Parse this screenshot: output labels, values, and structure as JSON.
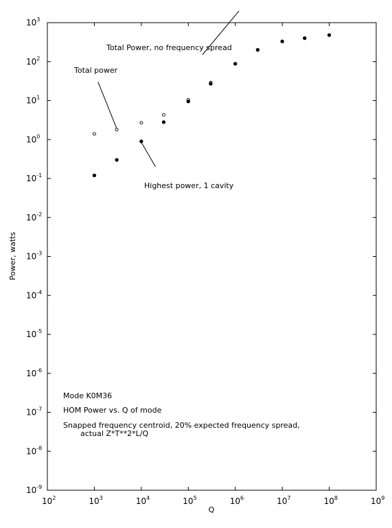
{
  "chart_data": {
    "type": "scatter",
    "xlabel": "Q",
    "ylabel": "Power, watts",
    "x_scale": "log",
    "y_scale": "log",
    "xlim": [
      100,
      1000000000
    ],
    "ylim": [
      1e-09,
      1000
    ],
    "x_ticks": [
      {
        "base": "10",
        "exp": "2",
        "value": 100
      },
      {
        "base": "10",
        "exp": "3",
        "value": 1000
      },
      {
        "base": "10",
        "exp": "4",
        "value": 10000
      },
      {
        "base": "10",
        "exp": "5",
        "value": 100000
      },
      {
        "base": "10",
        "exp": "6",
        "value": 1000000
      },
      {
        "base": "10",
        "exp": "7",
        "value": 10000000
      },
      {
        "base": "10",
        "exp": "8",
        "value": 100000000
      },
      {
        "base": "10",
        "exp": "9",
        "value": 1000000000
      }
    ],
    "y_ticks": [
      {
        "base": "10",
        "exp": "3",
        "value": 1000
      },
      {
        "base": "10",
        "exp": "2",
        "value": 100
      },
      {
        "base": "10",
        "exp": "1",
        "value": 10
      },
      {
        "base": "10",
        "exp": "0",
        "value": 1
      },
      {
        "base": "10",
        "exp": "-1",
        "value": 0.1
      },
      {
        "base": "10",
        "exp": "-2",
        "value": 0.01
      },
      {
        "base": "10",
        "exp": "-3",
        "value": 0.001
      },
      {
        "base": "10",
        "exp": "-4",
        "value": 0.0001
      },
      {
        "base": "10",
        "exp": "-5",
        "value": 1e-05
      },
      {
        "base": "10",
        "exp": "-6",
        "value": 1e-06
      },
      {
        "base": "10",
        "exp": "-7",
        "value": 1e-07
      },
      {
        "base": "10",
        "exp": "-8",
        "value": 1e-08
      },
      {
        "base": "10",
        "exp": "-9",
        "value": 1e-09
      }
    ],
    "series": [
      {
        "name": "Total power",
        "marker": "open-circle",
        "x": [
          1000,
          3000,
          10000,
          30000,
          100000,
          300000,
          1000000,
          3000000,
          10000000,
          30000000,
          100000000
        ],
        "y": [
          1.4,
          1.8,
          2.7,
          4.3,
          10.5,
          29,
          88,
          200,
          330,
          400,
          480
        ]
      },
      {
        "name": "Highest power, 1 cavity",
        "marker": "filled-circle",
        "x": [
          1000,
          3000,
          10000,
          30000,
          100000,
          300000,
          1000000,
          3000000,
          10000000,
          30000000,
          100000000
        ],
        "y": [
          0.12,
          0.3,
          0.9,
          2.8,
          9.5,
          27,
          88,
          200,
          330,
          400,
          480
        ]
      }
    ],
    "annotations": [
      {
        "text": "Total Power, no frequency spread",
        "pointer": [
          [
            1200000,
            2000
          ],
          [
            200000,
            150
          ]
        ]
      },
      {
        "text": "Total power",
        "pointer": [
          [
            1200,
            30
          ],
          [
            3000,
            1.9
          ]
        ]
      },
      {
        "text": "Highest power, 1 cavity",
        "pointer": [
          [
            20000,
            0.2
          ],
          [
            10000,
            0.85
          ]
        ]
      }
    ],
    "notes": [
      "Mode K0M36",
      "HOM Power vs. Q of mode",
      "Snapped frequency centroid, 20% expected frequency spread,",
      "actual Z*T**2*L/Q"
    ]
  }
}
